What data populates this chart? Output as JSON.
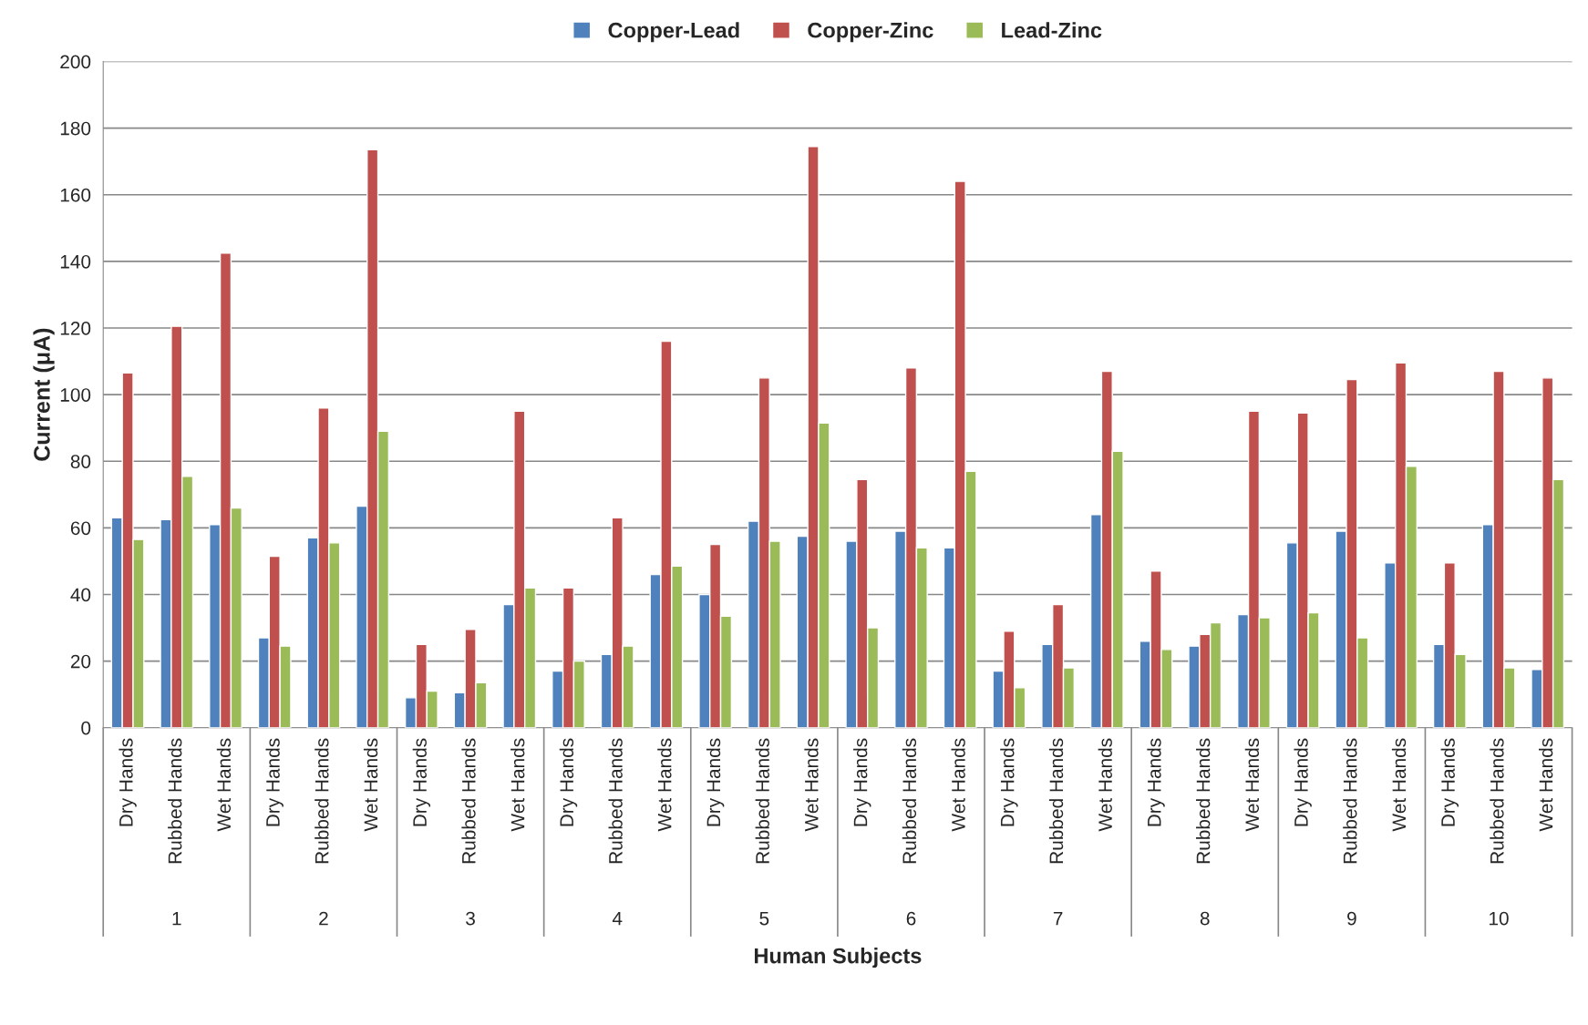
{
  "chart_data": {
    "type": "bar",
    "xlabel": "Human Subjects",
    "ylabel": "Current (μA)",
    "categories": [
      "Dry Hands",
      "Rubbed Hands",
      "Wet Hands",
      "Dry Hands",
      "Rubbed Hands",
      "Wet Hands",
      "Dry Hands",
      "Rubbed Hands",
      "Wet Hands",
      "Dry Hands",
      "Rubbed Hands",
      "Wet Hands",
      "Dry Hands",
      "Rubbed Hands",
      "Wet Hands",
      "Dry Hands",
      "Rubbed Hands",
      "Wet Hands",
      "Dry Hands",
      "Rubbed Hands",
      "Wet Hands",
      "Dry Hands",
      "Rubbed Hands",
      "Wet Hands",
      "Dry Hands",
      "Rubbed Hands",
      "Wet Hands",
      "Dry Hands",
      "Rubbed Hands",
      "Wet Hands"
    ],
    "annotations": [
      "1",
      "2",
      "3",
      "4",
      "5",
      "6",
      "7",
      "8",
      "9",
      "10"
    ],
    "series": [
      {
        "name": "Copper-Lead",
        "color": "#4f81bd",
        "values": [
          63,
          62.5,
          61,
          27,
          57,
          66.5,
          9,
          10.5,
          37,
          17,
          22,
          46,
          40,
          62,
          57.5,
          56,
          59,
          54,
          17,
          25,
          64,
          26,
          24.5,
          34,
          55.5,
          59,
          49.5,
          25,
          61,
          17.5
        ]
      },
      {
        "name": "Copper-Zinc",
        "color": "#c0504d",
        "values": [
          106.5,
          120.5,
          142.5,
          51.5,
          96,
          173.5,
          25,
          29.5,
          95,
          42,
          63,
          116,
          55,
          105,
          174.5,
          74.5,
          108,
          164,
          29,
          37,
          107,
          47,
          28,
          95,
          94.5,
          104.5,
          109.5,
          49.5,
          107,
          105
        ]
      },
      {
        "name": "Lead-Zinc",
        "color": "#9bbb59",
        "values": [
          56.5,
          75.5,
          66,
          24.5,
          55.5,
          89,
          11,
          13.5,
          42,
          20,
          24.5,
          48.5,
          33.5,
          56,
          91.5,
          30,
          54,
          77,
          12,
          18,
          83,
          23.5,
          31.5,
          33,
          34.5,
          27,
          78.5,
          22,
          18,
          74.5
        ]
      }
    ],
    "ylim": [
      0,
      200
    ],
    "yticks": [
      0,
      20,
      40,
      60,
      80,
      100,
      120,
      140,
      160,
      180,
      200
    ],
    "grid": "y",
    "legend": "top"
  }
}
